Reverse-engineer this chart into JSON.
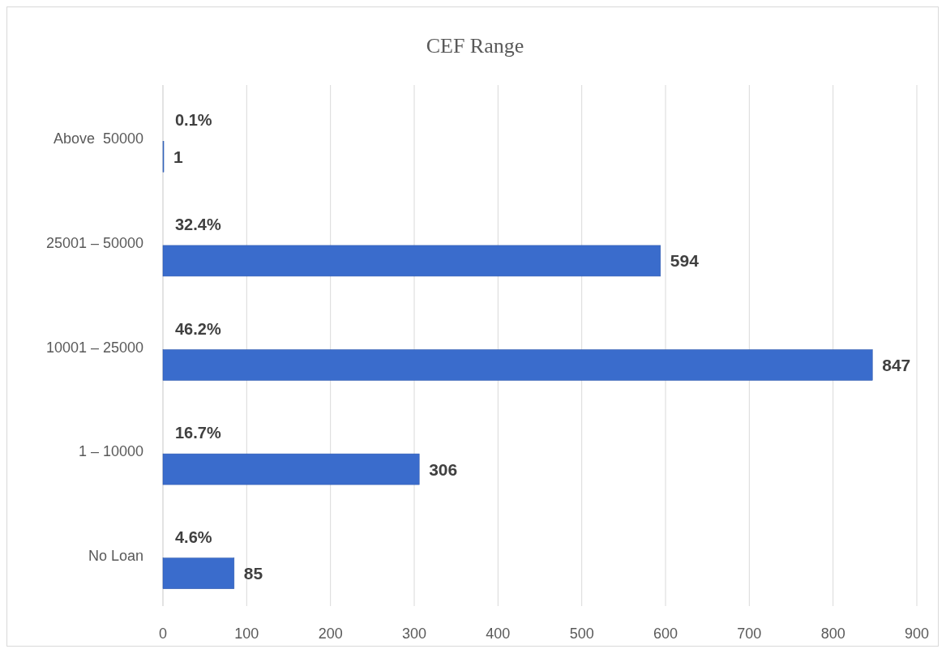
{
  "chart_data": {
    "type": "bar",
    "orientation": "horizontal",
    "title": "CEF Range",
    "categories": [
      "Above  50000",
      "25001 – 50000",
      "10001 – 25000",
      "1 – 10000",
      "No Loan"
    ],
    "values": [
      1,
      594,
      847,
      306,
      85
    ],
    "color": "#3a6ccc",
    "xlim": [
      0,
      900
    ],
    "xticks": [
      0,
      100,
      200,
      300,
      400,
      500,
      600,
      700,
      800,
      900
    ],
    "grid": "x",
    "data_labels": true,
    "annotations": [
      "0.1%",
      "32.4%",
      "46.2%",
      "16.7%",
      "4.6%"
    ]
  }
}
